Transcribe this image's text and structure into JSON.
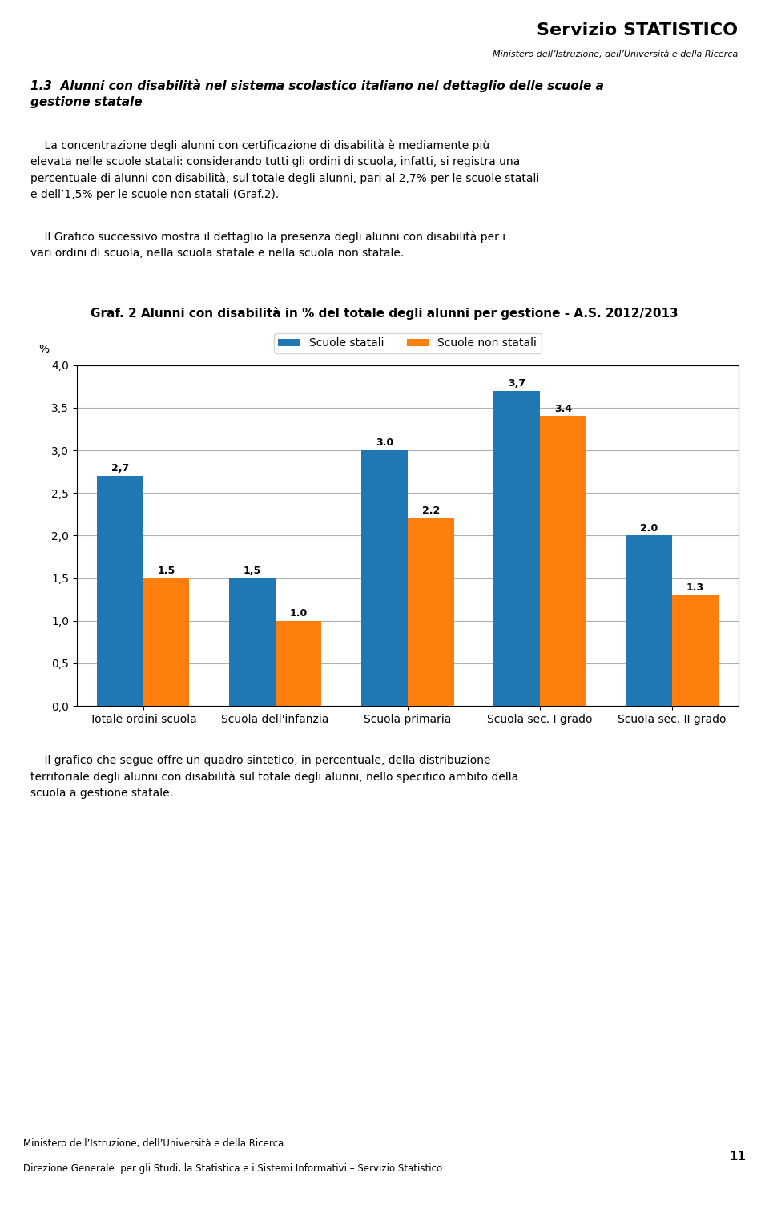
{
  "chart_data": {
    "type": "bar",
    "title": "Graf. 2 Alunni con disabilità in % del totale degli alunni per gestione - A.S. 2012/2013",
    "y_label": "%",
    "categories": [
      "Totale ordini scuola",
      "Scuola dell'infanzia",
      "Scuola primaria",
      "Scuola sec. I grado",
      "Scuola sec. II grado"
    ],
    "series": [
      {
        "name": "Scuole statali",
        "values": [
          2.7,
          1.5,
          3.0,
          3.7,
          2.0
        ],
        "value_labels": [
          "2,7",
          "1,5",
          "3.0",
          "3,7",
          "2.0"
        ]
      },
      {
        "name": "Scuole non statali",
        "values": [
          1.5,
          1.0,
          2.2,
          3.4,
          1.3
        ],
        "value_labels": [
          "1.5",
          "1.0",
          "2.2",
          "3.4",
          "1.3"
        ]
      }
    ],
    "ylim": [
      0,
      4.0
    ],
    "yticks": [
      {
        "value": 0.0,
        "label": "0,0"
      },
      {
        "value": 0.5,
        "label": "0,5"
      },
      {
        "value": 1.0,
        "label": "1,0"
      },
      {
        "value": 1.5,
        "label": "1,5"
      },
      {
        "value": 2.0,
        "label": "2,0"
      },
      {
        "value": 2.5,
        "label": "2,5"
      },
      {
        "value": 3.0,
        "label": "3,0"
      },
      {
        "value": 3.5,
        "label": "3,5"
      },
      {
        "value": 4.0,
        "label": "4,0"
      }
    ],
    "grid": true,
    "legend": "upper center",
    "data_labels": true,
    "annotations": [
      "Servizio STATISTICO",
      "Ministero dell’Istruzione, dell’Università e della Ricerca",
      "1.3  Alunni con disabilità nel sistema scolastico italiano nel dettaglio delle scuole a\ngestione statale",
      "    La concentrazione degli alunni con certificazione di disabilità è mediamente più\nelevata nelle scuole statali: considerando tutti gli ordini di scuola, infatti, si registra una\npercentuale di alunni con disabilità, sul totale degli alunni, pari al 2,7% per le scuole statali\ne dell’1,5% per le scuole non statali (Graf.2).",
      "    Il Grafico successivo mostra il dettaglio la presenza degli alunni con disabilità per i\nvari ordini di scuola, nella scuola statale e nella scuola non statale.",
      "    Il grafico che segue offre un quadro sintetico, in percentuale, della distribuzione\nterritoriale degli alunni con disabilità sul totale degli alunni, nello specifico ambito della\nscuola a gestione statale.",
      "Ministero dell’Istruzione, dell’Università e della Ricerca",
      "Direzione Generale  per gli Studi, la Statistica e i Sistemi Informativi – Servizio Statistico",
      "11"
    ]
  }
}
